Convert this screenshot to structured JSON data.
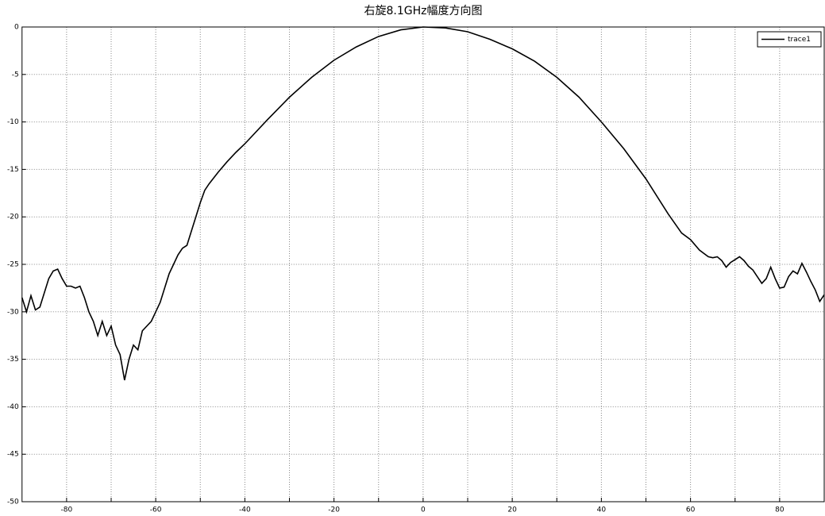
{
  "chart_data": {
    "type": "line",
    "title": "右旋8.1GHz幅度方向图",
    "x": [
      -90,
      -89,
      -88,
      -87,
      -86,
      -85,
      -84,
      -83,
      -82,
      -81,
      -80,
      -79,
      -78,
      -77,
      -76,
      -75,
      -74,
      -73,
      -72,
      -71,
      -70,
      -69,
      -68,
      -67,
      -66,
      -65,
      -64,
      -63,
      -62,
      -61,
      -60,
      -59,
      -58,
      -57,
      -56,
      -55,
      -54,
      -53,
      -52,
      -51,
      -50,
      -49,
      -48,
      -46,
      -44,
      -42,
      -40,
      -35,
      -30,
      -25,
      -20,
      -15,
      -10,
      -5,
      0,
      5,
      10,
      15,
      20,
      25,
      30,
      35,
      40,
      45,
      50,
      55,
      58,
      60,
      62,
      64,
      65,
      66,
      67,
      68,
      69,
      70,
      71,
      72,
      73,
      74,
      75,
      76,
      77,
      78,
      79,
      80,
      81,
      82,
      83,
      84,
      85,
      86,
      87,
      88,
      89,
      90
    ],
    "series": [
      {
        "name": "trace1",
        "color": "#000000",
        "values": [
          -28.5,
          -30,
          -28.3,
          -29.8,
          -29.5,
          -28,
          -26.5,
          -25.7,
          -25.5,
          -26.5,
          -27.3,
          -27.3,
          -27.5,
          -27.3,
          -28.5,
          -30,
          -31,
          -32.5,
          -31,
          -32.5,
          -31.5,
          -33.5,
          -34.5,
          -37.2,
          -35,
          -33.5,
          -34,
          -32,
          -31.5,
          -31,
          -30,
          -29,
          -27.5,
          -26,
          -25,
          -24,
          -23.3,
          -23,
          -21.5,
          -20,
          -18.5,
          -17.2,
          -16.5,
          -15.3,
          -14.2,
          -13.2,
          -12.3,
          -9.8,
          -7.4,
          -5.3,
          -3.5,
          -2.1,
          -1.0,
          -0.3,
          0,
          -0.1,
          -0.5,
          -1.3,
          -2.3,
          -3.6,
          -5.3,
          -7.4,
          -10,
          -12.8,
          -16,
          -19.7,
          -21.7,
          -22.4,
          -23.5,
          -24.2,
          -24.3,
          -24.2,
          -24.6,
          -25.3,
          -24.8,
          -24.5,
          -24.2,
          -24.6,
          -25.2,
          -25.6,
          -26.3,
          -27,
          -26.5,
          -25.3,
          -26.5,
          -27.5,
          -27.4,
          -26.3,
          -25.7,
          -26,
          -24.9,
          -25.8,
          -26.8,
          -27.7,
          -28.9,
          -28.2
        ]
      }
    ],
    "xlim": [
      -90,
      90
    ],
    "xticks": [
      -80,
      -60,
      -40,
      -20,
      0,
      20,
      40,
      60,
      80
    ],
    "xminorticks": [
      -70,
      -50,
      -30,
      -10,
      10,
      30,
      50,
      70
    ],
    "ylim": [
      -50,
      0
    ],
    "yticks": [
      0,
      -5,
      -10,
      -15,
      -20,
      -25,
      -30,
      -35,
      -40,
      -45,
      -50
    ],
    "grid": true,
    "legend": "upper right"
  }
}
